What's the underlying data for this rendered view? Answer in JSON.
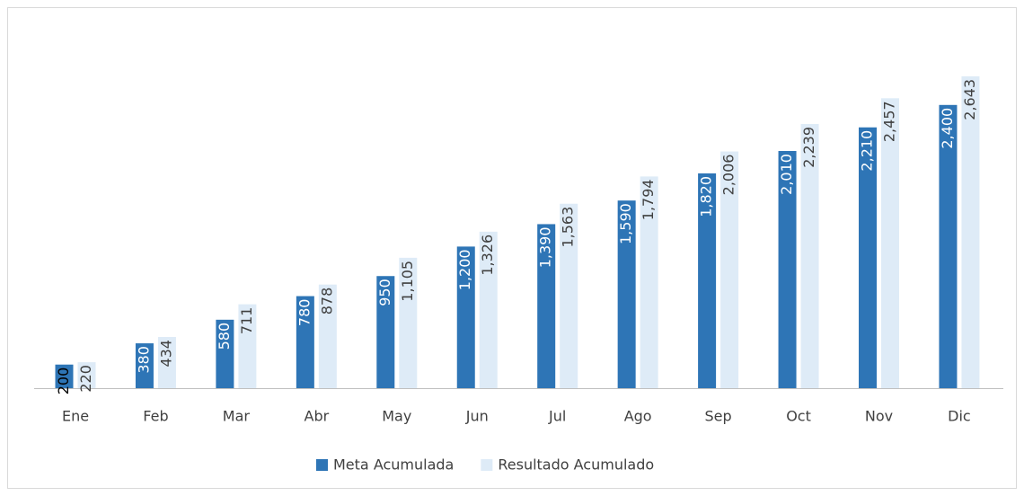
{
  "chart_data": {
    "type": "bar",
    "categories": [
      "Ene",
      "Feb",
      "Mar",
      "Abr",
      "May",
      "Jun",
      "Jul",
      "Ago",
      "Sep",
      "Oct",
      "Nov",
      "Dic"
    ],
    "series": [
      {
        "name": "Meta Acumulada",
        "color": "#2e75b6",
        "values": [
          200,
          380,
          580,
          780,
          950,
          1200,
          1390,
          1590,
          1820,
          2010,
          2210,
          2400
        ],
        "value_labels": [
          "200",
          "380",
          "580",
          "780",
          "950",
          "1,200",
          "1,390",
          "1,590",
          "1,820",
          "2,010",
          "2,210",
          "2,400"
        ]
      },
      {
        "name": "Resultado Acumulado",
        "color": "#deebf7",
        "values": [
          220,
          434,
          711,
          878,
          1105,
          1326,
          1563,
          1794,
          2006,
          2239,
          2457,
          2643
        ],
        "value_labels": [
          "220",
          "434",
          "711",
          "878",
          "1,105",
          "1,326",
          "1,563",
          "1,794",
          "2,006",
          "2,239",
          "2,457",
          "2,643"
        ]
      }
    ],
    "ylim": [
      0,
      3000
    ],
    "legend": "bottom"
  }
}
